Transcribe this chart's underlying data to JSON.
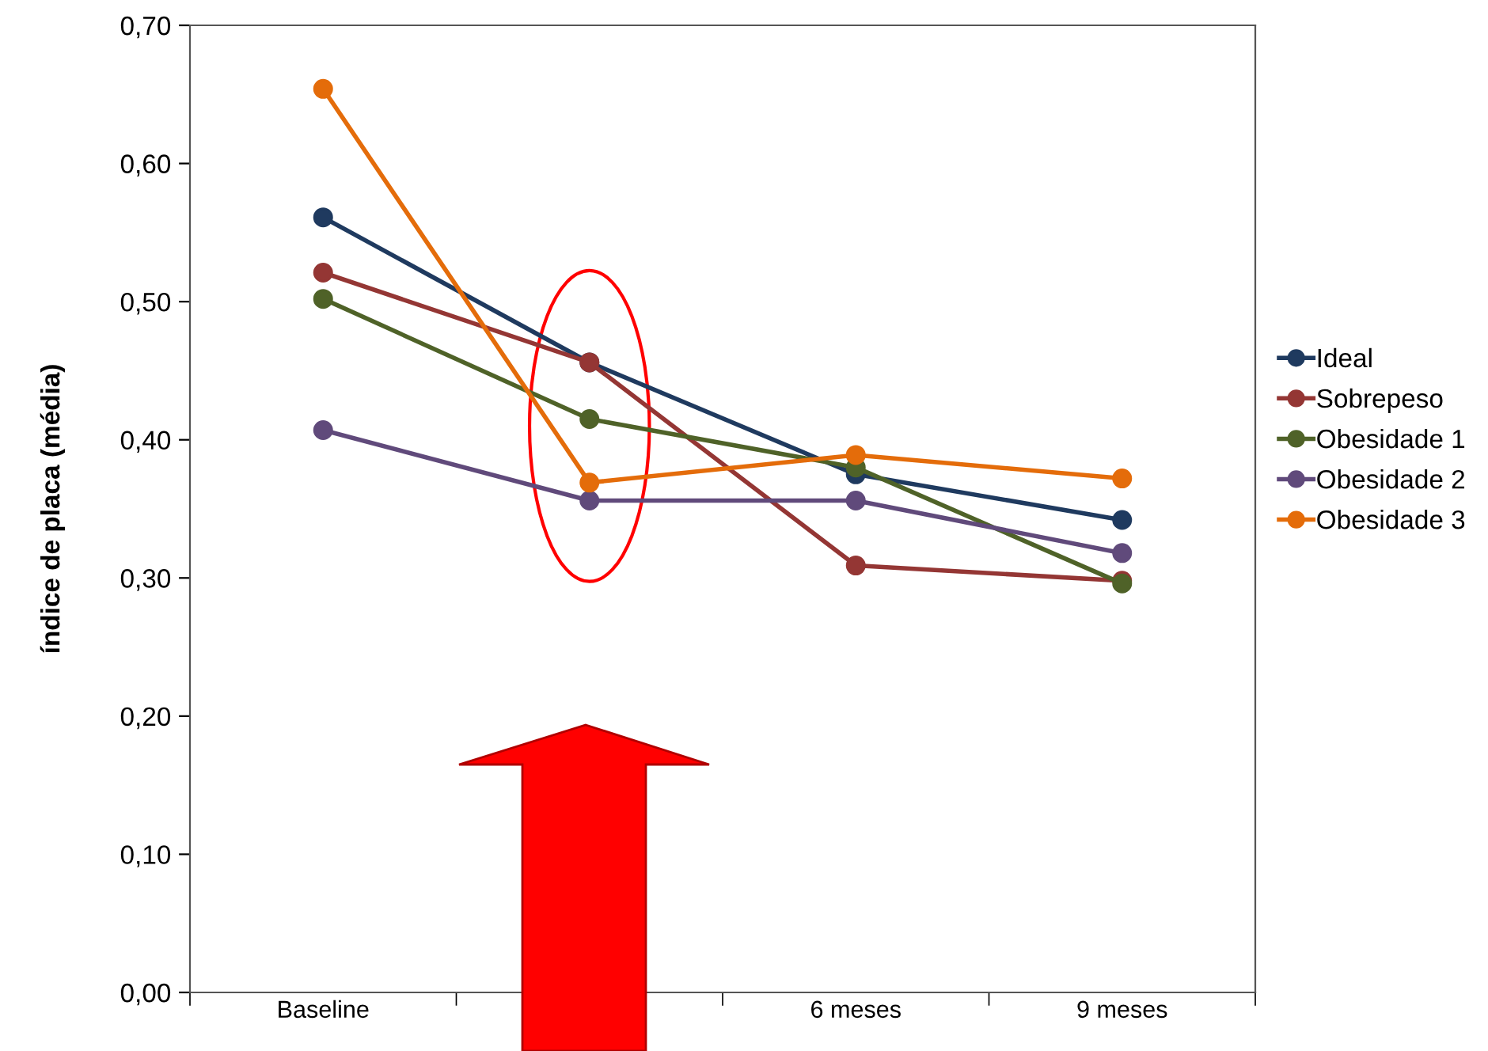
{
  "chart_data": {
    "type": "line",
    "ylabel": "índice de placa (média)",
    "categories": [
      "Baseline",
      null,
      "6 meses",
      "9 meses"
    ],
    "series": [
      {
        "name": "Ideal",
        "color": "#1f3a5f",
        "values": [
          0.561,
          0.456,
          0.375,
          0.342
        ]
      },
      {
        "name": "Sobrepeso",
        "color": "#943634",
        "values": [
          0.521,
          0.456,
          0.309,
          0.298
        ]
      },
      {
        "name": "Obesidade 1",
        "color": "#4f6228",
        "values": [
          0.502,
          0.415,
          0.38,
          0.296
        ]
      },
      {
        "name": "Obesidade 2",
        "color": "#604a7b",
        "values": [
          0.407,
          0.356,
          0.356,
          0.318
        ]
      },
      {
        "name": "Obesidade 3",
        "color": "#e46c0a",
        "values": [
          0.654,
          0.369,
          0.389,
          0.372
        ]
      }
    ],
    "ylim": [
      0,
      0.7
    ],
    "yticks": [
      {
        "value": 0,
        "label": "0,00"
      },
      {
        "value": 0.1,
        "label": "0,10"
      },
      {
        "value": 0.2,
        "label": "0,20"
      },
      {
        "value": 0.3,
        "label": "0,30"
      },
      {
        "value": 0.4,
        "label": "0,40"
      },
      {
        "value": 0.5,
        "label": "0,50"
      },
      {
        "value": 0.6,
        "label": "0,60"
      },
      {
        "value": 0.7,
        "label": "0,70"
      }
    ],
    "legend": "right",
    "marker": "circle",
    "line_style": "solid"
  }
}
